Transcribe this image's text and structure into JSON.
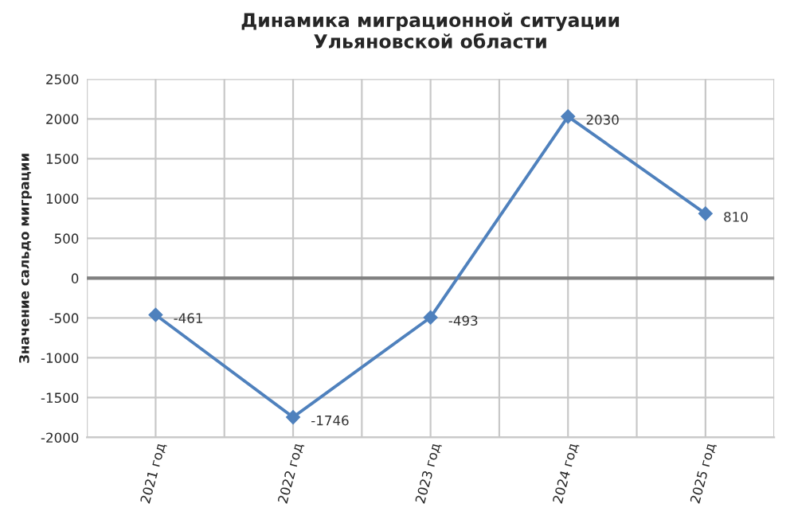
{
  "chart_data": {
    "type": "line",
    "title": "Динамика миграционной ситуации\nУльяновской области",
    "ylabel": "Значение сальдо миграции",
    "categories": [
      "2021 год",
      "2022 год",
      "2023 год",
      "2024 год",
      "2025 год"
    ],
    "series": [
      {
        "color": "#4f81bd",
        "values": [
          -461,
          -1746,
          -493,
          2030,
          810
        ]
      }
    ],
    "ylim": [
      -2000,
      2500
    ],
    "yticks": [
      -2000,
      -1500,
      -1000,
      -500,
      0,
      500,
      1000,
      1500,
      2000,
      2500
    ],
    "grid": true,
    "marker": "diamond",
    "line_style": "solid",
    "data_labels": true
  }
}
